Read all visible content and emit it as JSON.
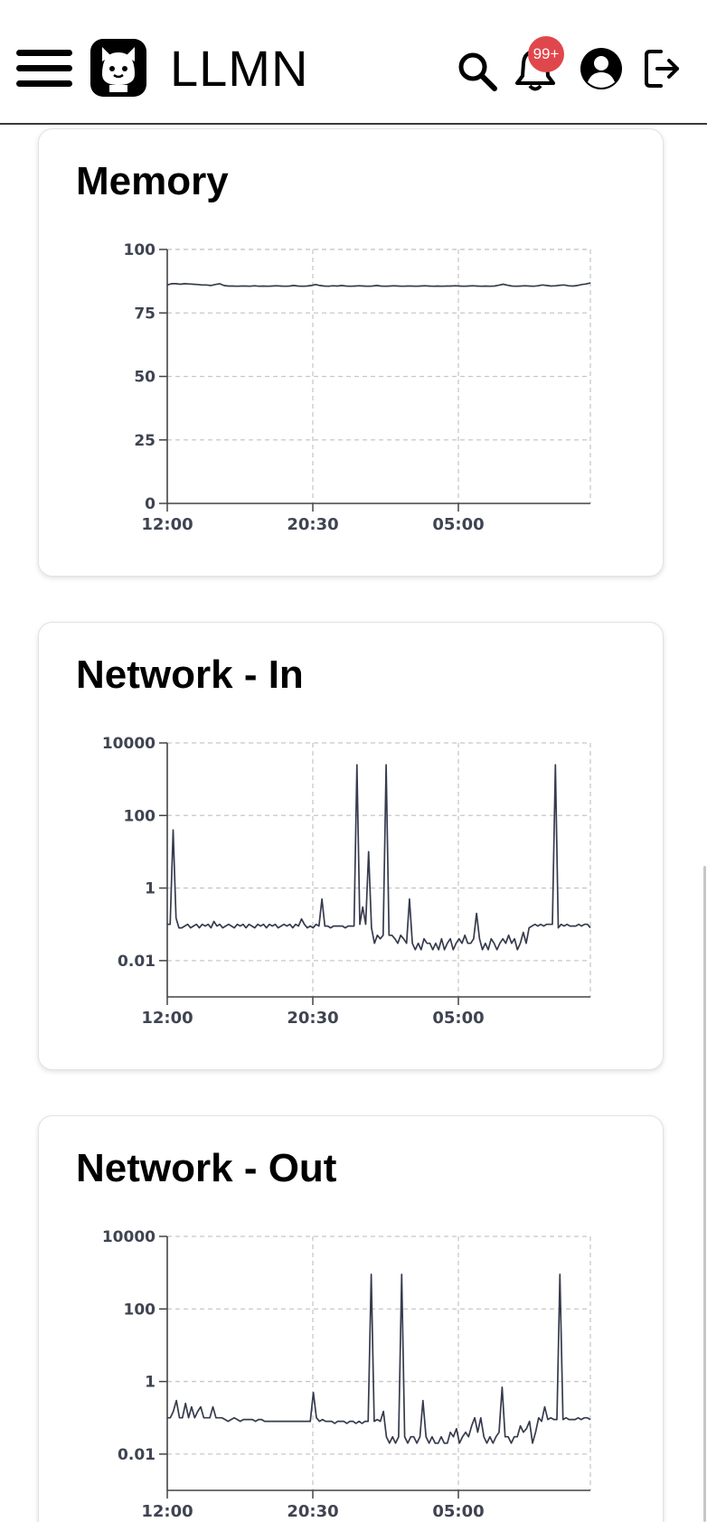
{
  "app": {
    "title": "LLMN",
    "notification_count": "99+"
  },
  "icons": {
    "menu": "hamburger-menu-icon",
    "logo": "cat-face-logo-icon",
    "search": "search-icon",
    "notifications": "bell-icon",
    "account": "user-circle-icon",
    "logout": "logout-icon"
  },
  "colors": {
    "line": "#363b4d",
    "badge": "#e0474c",
    "grid": "#c8c8c8"
  },
  "cards": [
    {
      "title": "Memory",
      "chart_data": {
        "type": "line",
        "scale": "linear",
        "yticks": [
          "0",
          "25",
          "50",
          "75",
          "100"
        ],
        "ylim": [
          0,
          100
        ],
        "xticks": [
          "12:00",
          "20:30",
          "05:00"
        ],
        "grid": true,
        "values": [
          86,
          86.5,
          86.5,
          86.3,
          86.5,
          86.4,
          86.3,
          86.2,
          86,
          86,
          85.8,
          86.2,
          86.5,
          85.8,
          85.6,
          85.6,
          85.5,
          85.6,
          85.6,
          85.5,
          85.7,
          85.5,
          85.6,
          85.5,
          85.6,
          85.7,
          85.6,
          85.5,
          85.6,
          85.8,
          85.6,
          85.5,
          85.6,
          85.8,
          86.2,
          85.8,
          85.6,
          85.5,
          85.7,
          85.6,
          85.8,
          85.6,
          85.5,
          85.6,
          85.7,
          85.6,
          85.5,
          85.6,
          85.8,
          85.6,
          85.5,
          85.6,
          85.7,
          85.6,
          85.5,
          85.6,
          85.6,
          85.5,
          85.6,
          85.7,
          85.6,
          85.5,
          85.6,
          85.5,
          85.6,
          85.6,
          85.7,
          85.6,
          85.5,
          85.6,
          85.7,
          85.6,
          85.5,
          85.6,
          85.5,
          85.6,
          85.9,
          86.3,
          85.9,
          85.6,
          85.5,
          85.6,
          85.7,
          85.6,
          85.5,
          85.7,
          86,
          85.8,
          85.6,
          85.7,
          85.9,
          86,
          85.7,
          85.6,
          85.8,
          86.2,
          86.4,
          86.8
        ]
      }
    },
    {
      "title": "Network - In",
      "chart_data": {
        "type": "line",
        "scale": "log",
        "yticks": [
          "0.01",
          "1",
          "100",
          "10000"
        ],
        "ylim": [
          0.001,
          10000
        ],
        "xticks": [
          "12:00",
          "20:30",
          "05:00"
        ],
        "grid": true,
        "values": [
          0.1,
          0.1,
          40,
          0.15,
          0.08,
          0.08,
          0.09,
          0.1,
          0.08,
          0.09,
          0.1,
          0.08,
          0.1,
          0.09,
          0.1,
          0.08,
          0.12,
          0.09,
          0.1,
          0.08,
          0.09,
          0.1,
          0.09,
          0.08,
          0.1,
          0.09,
          0.1,
          0.08,
          0.1,
          0.09,
          0.08,
          0.1,
          0.09,
          0.1,
          0.08,
          0.1,
          0.09,
          0.1,
          0.08,
          0.09,
          0.1,
          0.09,
          0.1,
          0.08,
          0.1,
          0.09,
          0.14,
          0.1,
          0.08,
          0.09,
          0.08,
          0.1,
          0.09,
          0.5,
          0.09,
          0.09,
          0.08,
          0.09,
          0.09,
          0.09,
          0.09,
          0.08,
          0.09,
          0.09,
          0.09,
          2500,
          0.1,
          0.3,
          0.1,
          10,
          0.08,
          0.03,
          0.05,
          0.04,
          0.05,
          2500,
          0.05,
          0.05,
          0.04,
          0.03,
          0.05,
          0.04,
          0.03,
          0.5,
          0.03,
          0.02,
          0.03,
          0.02,
          0.04,
          0.03,
          0.03,
          0.02,
          0.03,
          0.02,
          0.04,
          0.02,
          0.03,
          0.04,
          0.02,
          0.03,
          0.04,
          0.03,
          0.05,
          0.03,
          0.03,
          0.04,
          0.2,
          0.04,
          0.02,
          0.03,
          0.02,
          0.04,
          0.03,
          0.02,
          0.03,
          0.04,
          0.03,
          0.05,
          0.03,
          0.04,
          0.02,
          0.03,
          0.06,
          0.03,
          0.08,
          0.09,
          0.1,
          0.09,
          0.1,
          0.09,
          0.1,
          0.1,
          0.1,
          2500,
          0.08,
          0.1,
          0.09,
          0.1,
          0.09,
          0.09,
          0.09,
          0.1,
          0.09,
          0.1,
          0.1,
          0.08
        ]
      }
    },
    {
      "title": "Network - Out",
      "chart_data": {
        "type": "line",
        "scale": "log",
        "yticks": [
          "0.01",
          "1",
          "100",
          "10000"
        ],
        "ylim": [
          0.001,
          10000
        ],
        "xticks": [
          "12:00",
          "20:30",
          "05:00"
        ],
        "grid": true,
        "values": [
          0.1,
          0.1,
          0.15,
          0.3,
          0.1,
          0.1,
          0.25,
          0.1,
          0.2,
          0.1,
          0.15,
          0.2,
          0.1,
          0.1,
          0.1,
          0.2,
          0.1,
          0.1,
          0.1,
          0.09,
          0.08,
          0.09,
          0.1,
          0.09,
          0.08,
          0.09,
          0.09,
          0.09,
          0.09,
          0.08,
          0.09,
          0.09,
          0.08,
          0.08,
          0.08,
          0.08,
          0.08,
          0.08,
          0.08,
          0.08,
          0.08,
          0.08,
          0.08,
          0.08,
          0.08,
          0.08,
          0.08,
          0.08,
          0.5,
          0.1,
          0.08,
          0.09,
          0.08,
          0.08,
          0.08,
          0.07,
          0.08,
          0.08,
          0.08,
          0.07,
          0.08,
          0.08,
          0.07,
          0.08,
          0.07,
          0.08,
          0.08,
          900,
          0.08,
          0.09,
          0.08,
          0.15,
          0.03,
          0.02,
          0.03,
          0.02,
          0.03,
          900,
          0.03,
          0.02,
          0.03,
          0.03,
          0.02,
          0.03,
          0.3,
          0.03,
          0.02,
          0.03,
          0.02,
          0.02,
          0.03,
          0.02,
          0.02,
          0.04,
          0.03,
          0.05,
          0.02,
          0.03,
          0.04,
          0.03,
          0.06,
          0.1,
          0.04,
          0.1,
          0.03,
          0.02,
          0.03,
          0.02,
          0.03,
          0.04,
          0.7,
          0.03,
          0.03,
          0.02,
          0.03,
          0.03,
          0.06,
          0.04,
          0.05,
          0.08,
          0.02,
          0.04,
          0.1,
          0.08,
          0.2,
          0.09,
          0.1,
          0.09,
          0.09,
          900,
          0.09,
          0.1,
          0.09,
          0.09,
          0.09,
          0.1,
          0.09,
          0.1,
          0.1,
          0.09
        ]
      }
    }
  ]
}
